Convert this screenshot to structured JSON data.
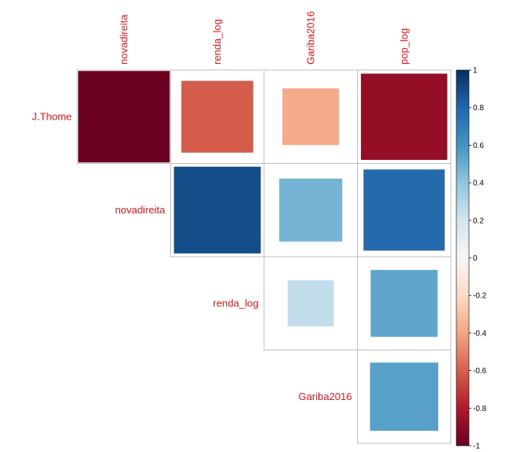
{
  "chart_data": {
    "type": "heatmap",
    "variant": "upper-triangular correlation matrix, square glyphs",
    "columns": [
      "novadireita",
      "renda_log",
      "Gariba2016",
      "pop_log"
    ],
    "rows": [
      "J.Thome",
      "novadireita",
      "renda_log",
      "Gariba2016"
    ],
    "cells": [
      {
        "row": "J.Thome",
        "col": "novadireita",
        "value": -0.99
      },
      {
        "row": "J.Thome",
        "col": "renda_log",
        "value": -0.61
      },
      {
        "row": "J.Thome",
        "col": "Gariba2016",
        "value": -0.38
      },
      {
        "row": "J.Thome",
        "col": "pop_log",
        "value": -0.88
      },
      {
        "row": "novadireita",
        "col": "renda_log",
        "value": 0.89
      },
      {
        "row": "novadireita",
        "col": "Gariba2016",
        "value": 0.47
      },
      {
        "row": "novadireita",
        "col": "pop_log",
        "value": 0.78
      },
      {
        "row": "renda_log",
        "col": "Gariba2016",
        "value": 0.25
      },
      {
        "row": "renda_log",
        "col": "pop_log",
        "value": 0.53
      },
      {
        "row": "Gariba2016",
        "col": "pop_log",
        "value": 0.55
      }
    ],
    "colorbar": {
      "ticks": [
        "1",
        "0.8",
        "0.6",
        "0.4",
        "0.2",
        "0",
        "-0.2",
        "-0.4",
        "-0.6",
        "-0.8",
        "-1"
      ],
      "range": [
        -1,
        1
      ]
    },
    "colors": {
      "neg_strong": "#67001f",
      "neg_mid": "#d6604d",
      "neg_light": "#f4a582",
      "neutral": "#f7f7f7",
      "pos_light": "#92c5de",
      "pos_mid": "#4393c3",
      "pos_strong": "#053061",
      "label": "#e8141c",
      "grid": "#bfbfbf"
    }
  }
}
